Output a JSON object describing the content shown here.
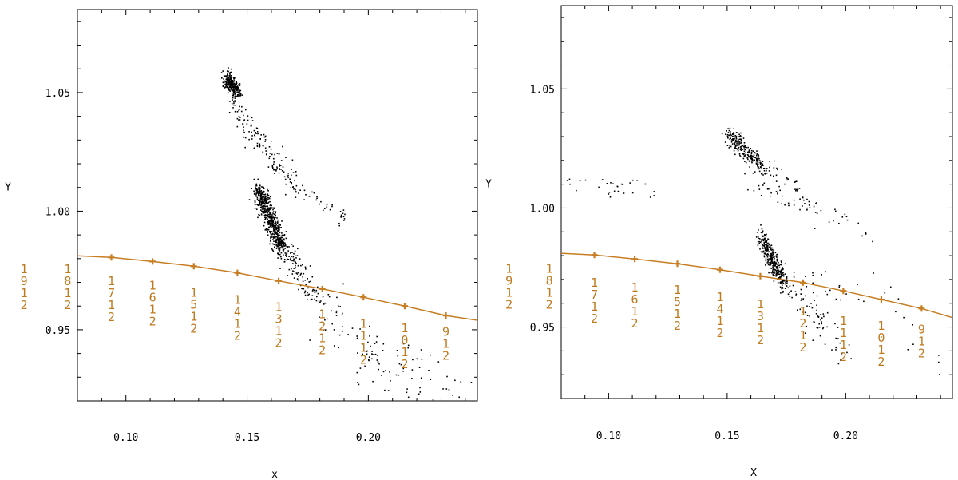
{
  "colors": {
    "resonance": "#c77d22",
    "points": "#000000",
    "frame": "#000000",
    "background": "#ffffff"
  },
  "chart_data": [
    {
      "type": "scatter",
      "title": "",
      "xlabel": "x",
      "ylabel": "Y",
      "xlim": [
        0.08,
        0.245
      ],
      "ylim": [
        0.92,
        1.085
      ],
      "xticks": [
        "0.10",
        "0.15",
        "0.20"
      ],
      "yticks": [
        "0.95",
        "1.00",
        "1.05"
      ],
      "grid": false,
      "clusters": [
        {
          "x": [
            0.141,
            0.146
          ],
          "y": [
            1.057,
            1.05
          ],
          "n": 260,
          "spread": 0.0017
        },
        {
          "x": [
            0.143,
            0.17
          ],
          "y": [
            1.046,
            1.01
          ],
          "n": 150,
          "spread": 0.0025
        },
        {
          "x": [
            0.17,
            0.19
          ],
          "y": [
            1.01,
            0.997
          ],
          "n": 35,
          "spread": 0.002
        },
        {
          "x": [
            0.154,
            0.164
          ],
          "y": [
            1.01,
            0.985
          ],
          "n": 620,
          "spread": 0.0022
        },
        {
          "x": [
            0.164,
            0.178
          ],
          "y": [
            0.985,
            0.964
          ],
          "n": 110,
          "spread": 0.003
        },
        {
          "x": [
            0.178,
            0.2
          ],
          "y": [
            0.964,
            0.935
          ],
          "n": 60,
          "spread": 0.006
        },
        {
          "x": [
            0.198,
            0.24
          ],
          "y": [
            0.94,
            0.922
          ],
          "n": 70,
          "spread": 0.006
        }
      ],
      "resonance_line": {
        "points": [
          [
            0.08,
            0.9812
          ],
          [
            0.094,
            0.9805
          ],
          [
            0.111,
            0.9788
          ],
          [
            0.128,
            0.9768
          ],
          [
            0.146,
            0.974
          ],
          [
            0.163,
            0.9706
          ],
          [
            0.181,
            0.9672
          ],
          [
            0.198,
            0.9637
          ],
          [
            0.215,
            0.96
          ],
          [
            0.232,
            0.956
          ],
          [
            0.245,
            0.954
          ]
        ],
        "markers": [
          0.094,
          0.111,
          0.128,
          0.146,
          0.163,
          0.181,
          0.198,
          0.215,
          0.232
        ]
      },
      "resonance_labels": [
        {
          "text": "1/9/1/2",
          "x": 0.058,
          "y": 0.968
        },
        {
          "text": "1/8/1/2",
          "x": 0.076,
          "y": 0.968
        },
        {
          "text": "1/7/1/2",
          "x": 0.094,
          "y": 0.963
        },
        {
          "text": "1/6/1/2",
          "x": 0.111,
          "y": 0.961
        },
        {
          "text": "1/5/1/2",
          "x": 0.128,
          "y": 0.958
        },
        {
          "text": "1/4/1/2",
          "x": 0.146,
          "y": 0.955
        },
        {
          "text": "1/3/1/2",
          "x": 0.163,
          "y": 0.952
        },
        {
          "text": "1/2/1/2",
          "x": 0.181,
          "y": 0.949
        },
        {
          "text": "1/1/1/2",
          "x": 0.198,
          "y": 0.945
        },
        {
          "text": "1/0/1/2",
          "x": 0.215,
          "y": 0.943
        },
        {
          "text": "9/1/2",
          "x": 0.232,
          "y": 0.944
        }
      ]
    },
    {
      "type": "scatter",
      "title": "",
      "xlabel": "X",
      "ylabel": "Y",
      "xlim": [
        0.08,
        0.245
      ],
      "ylim": [
        0.92,
        1.085
      ],
      "xticks": [
        "0.10",
        "0.15",
        "0.20"
      ],
      "yticks": [
        "0.95",
        "1.00",
        "1.05"
      ],
      "grid": false,
      "clusters": [
        {
          "x": [
            0.15,
            0.165
          ],
          "y": [
            1.032,
            1.017
          ],
          "n": 240,
          "spread": 0.002
        },
        {
          "x": [
            0.165,
            0.18
          ],
          "y": [
            1.017,
            1.01
          ],
          "n": 30,
          "spread": 0.002
        },
        {
          "x": [
            0.158,
            0.21
          ],
          "y": [
            1.012,
            0.99
          ],
          "n": 60,
          "spread": 0.0025
        },
        {
          "x": [
            0.082,
            0.116
          ],
          "y": [
            1.012,
            1.009
          ],
          "n": 22,
          "spread": 0.0015
        },
        {
          "x": [
            0.1,
            0.12
          ],
          "y": [
            1.006,
            1.005
          ],
          "n": 8,
          "spread": 0.001
        },
        {
          "x": [
            0.164,
            0.174
          ],
          "y": [
            0.988,
            0.968
          ],
          "n": 320,
          "spread": 0.002
        },
        {
          "x": [
            0.174,
            0.2
          ],
          "y": [
            0.968,
            0.94
          ],
          "n": 80,
          "spread": 0.004
        },
        {
          "x": [
            0.185,
            0.205
          ],
          "y": [
            0.972,
            0.96
          ],
          "n": 20,
          "spread": 0.003
        },
        {
          "x": [
            0.21,
            0.245
          ],
          "y": [
            0.975,
            0.925
          ],
          "n": 12,
          "spread": 0.004
        }
      ],
      "resonance_line": {
        "points": [
          [
            0.08,
            0.981
          ],
          [
            0.094,
            0.9803
          ],
          [
            0.111,
            0.9786
          ],
          [
            0.129,
            0.9766
          ],
          [
            0.147,
            0.9741
          ],
          [
            0.164,
            0.9714
          ],
          [
            0.182,
            0.9687
          ],
          [
            0.199,
            0.9652
          ],
          [
            0.215,
            0.9616
          ],
          [
            0.232,
            0.9578
          ],
          [
            0.245,
            0.954
          ]
        ],
        "markers": [
          0.094,
          0.111,
          0.129,
          0.147,
          0.164,
          0.182,
          0.199,
          0.215,
          0.232
        ]
      },
      "resonance_labels": [
        {
          "text": "1/9/1/2",
          "x": 0.058,
          "y": 0.967
        },
        {
          "text": "1/8/1/2",
          "x": 0.075,
          "y": 0.967
        },
        {
          "text": "1/7/1/2",
          "x": 0.094,
          "y": 0.961
        },
        {
          "text": "1/6/1/2",
          "x": 0.111,
          "y": 0.959
        },
        {
          "text": "1/5/1/2",
          "x": 0.129,
          "y": 0.958
        },
        {
          "text": "1/4/1/2",
          "x": 0.147,
          "y": 0.955
        },
        {
          "text": "1/3/1/2",
          "x": 0.164,
          "y": 0.952
        },
        {
          "text": "1/2/1/2",
          "x": 0.182,
          "y": 0.949
        },
        {
          "text": "1/1/1/2",
          "x": 0.199,
          "y": 0.945
        },
        {
          "text": "1/0/1/2",
          "x": 0.215,
          "y": 0.943
        },
        {
          "text": "9/1/2",
          "x": 0.232,
          "y": 0.944
        }
      ]
    }
  ]
}
